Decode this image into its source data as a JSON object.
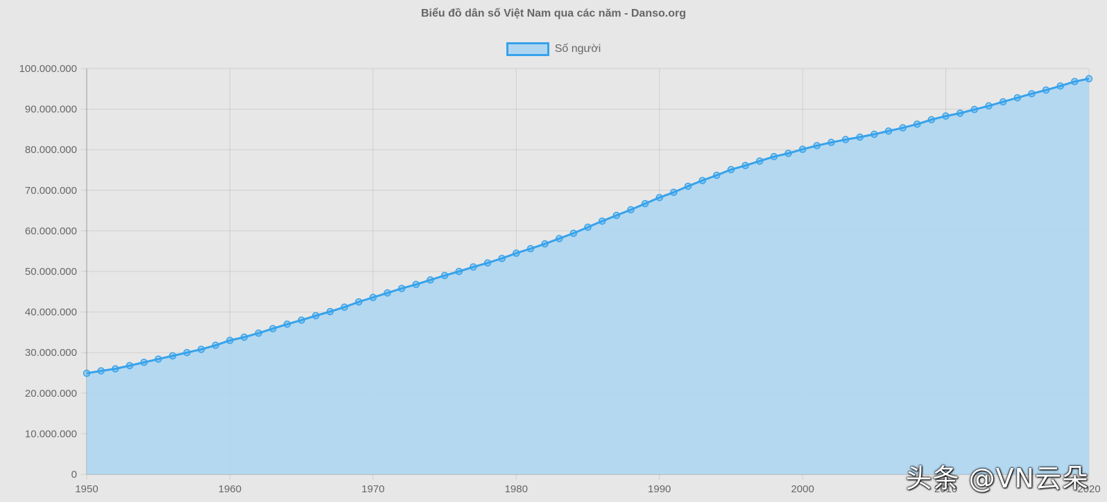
{
  "chart_data": {
    "type": "line",
    "filled": true,
    "title": "Biểu đồ dân số Việt Nam qua các năm - Danso.org",
    "legend_position": "top",
    "grid": true,
    "xlim": [
      1950,
      2020
    ],
    "ylim": [
      0,
      100000000
    ],
    "x_ticks": [
      "1950",
      "1960",
      "1970",
      "1980",
      "1990",
      "2000",
      "2010",
      "2020"
    ],
    "y_ticks": [
      "0",
      "10.000.000",
      "20.000.000",
      "30.000.000",
      "40.000.000",
      "50.000.000",
      "60.000.000",
      "70.000.000",
      "80.000.000",
      "90.000.000",
      "100.000.000"
    ],
    "x": [
      1950,
      1951,
      1952,
      1953,
      1954,
      1955,
      1956,
      1957,
      1958,
      1959,
      1960,
      1961,
      1962,
      1963,
      1964,
      1965,
      1966,
      1967,
      1968,
      1969,
      1970,
      1971,
      1972,
      1973,
      1974,
      1975,
      1976,
      1977,
      1978,
      1979,
      1980,
      1981,
      1982,
      1983,
      1984,
      1985,
      1986,
      1987,
      1988,
      1989,
      1990,
      1991,
      1992,
      1993,
      1994,
      1995,
      1996,
      1997,
      1998,
      1999,
      2000,
      2001,
      2002,
      2003,
      2004,
      2005,
      2006,
      2007,
      2008,
      2009,
      2010,
      2011,
      2012,
      2013,
      2014,
      2015,
      2016,
      2017,
      2018,
      2019,
      2020
    ],
    "series": [
      {
        "name": "Số người",
        "color": "#36a2eb",
        "fill": "#aed6f1",
        "values": [
          24900000,
          25500000,
          26000000,
          26800000,
          27600000,
          28400000,
          29200000,
          30000000,
          30800000,
          31800000,
          33000000,
          33800000,
          34800000,
          35900000,
          37000000,
          38000000,
          39100000,
          40100000,
          41200000,
          42500000,
          43600000,
          44700000,
          45800000,
          46800000,
          47900000,
          49000000,
          50000000,
          51100000,
          52100000,
          53200000,
          54500000,
          55600000,
          56800000,
          58100000,
          59400000,
          60900000,
          62400000,
          63800000,
          65200000,
          66700000,
          68200000,
          69500000,
          71000000,
          72400000,
          73700000,
          75100000,
          76100000,
          77200000,
          78300000,
          79100000,
          80100000,
          81000000,
          81800000,
          82500000,
          83100000,
          83800000,
          84600000,
          85400000,
          86300000,
          87400000,
          88300000,
          89000000,
          89900000,
          90800000,
          91800000,
          92800000,
          93800000,
          94700000,
          95700000,
          96800000,
          97500000
        ]
      }
    ]
  },
  "legend": {
    "label": "Số người",
    "color": "#36a2eb"
  },
  "watermark": "头条 @VN云朵"
}
